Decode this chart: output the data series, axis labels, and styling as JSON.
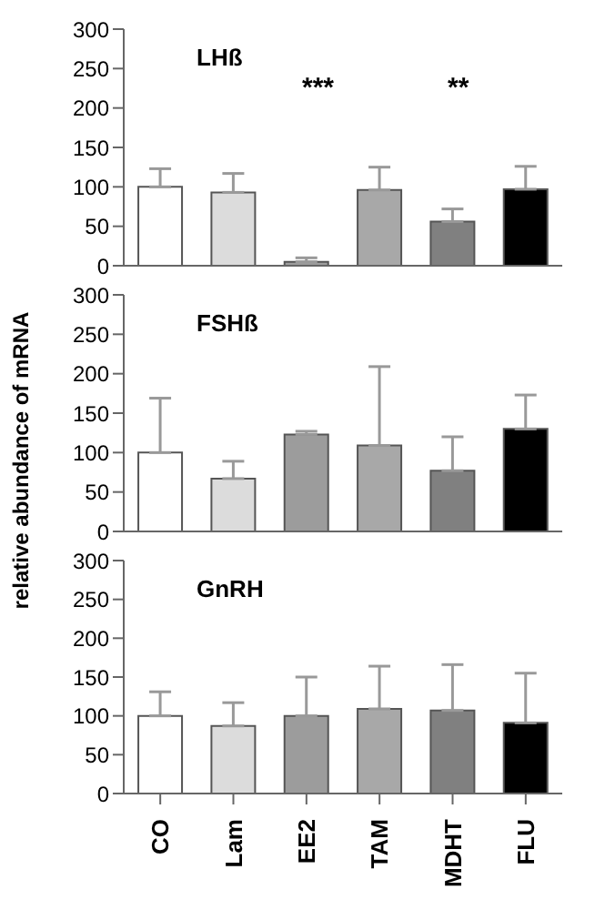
{
  "chart_data": [
    {
      "type": "bar",
      "title": "LHß",
      "categories": [
        null,
        null,
        null,
        null,
        null,
        null
      ],
      "values": [
        100,
        93,
        5,
        96,
        56,
        97
      ],
      "colors": [
        "#ffffff",
        "#dcdcdc",
        "#9c9c9c",
        "#a8a8a8",
        "#808080",
        "#000000"
      ],
      "errors": [
        [
          100,
          123
        ],
        [
          93,
          117
        ],
        [
          5,
          10
        ],
        [
          96,
          125
        ],
        [
          56,
          72
        ],
        [
          97,
          126
        ]
      ],
      "ylim": [
        0,
        300
      ],
      "yticks": [
        0,
        50,
        100,
        150,
        200,
        250,
        300
      ],
      "tick_labels": "y",
      "annotations": [
        "***",
        "**"
      ]
    },
    {
      "type": "bar",
      "title": "FSHß",
      "ylabel": "relative abundance of mRNA",
      "categories": [
        null,
        null,
        null,
        null,
        null,
        null
      ],
      "values": [
        100,
        67,
        123,
        109,
        77,
        130
      ],
      "colors": [
        "#ffffff",
        "#dcdcdc",
        "#9c9c9c",
        "#a8a8a8",
        "#808080",
        "#000000"
      ],
      "errors": [
        [
          100,
          169
        ],
        [
          67,
          89
        ],
        [
          123,
          127
        ],
        [
          109,
          209
        ],
        [
          77,
          120
        ],
        [
          130,
          173
        ]
      ],
      "ylim": [
        0,
        300
      ],
      "yticks": [
        0,
        50,
        100,
        150,
        200,
        250,
        300
      ],
      "tick_labels": "y"
    },
    {
      "type": "bar",
      "title": "GnRH",
      "categories": [
        "CO",
        "Lam",
        "EE2",
        "TAM",
        "MDHT",
        "FLU"
      ],
      "values": [
        100,
        87,
        100,
        109,
        107,
        91
      ],
      "colors": [
        "#ffffff",
        "#dcdcdc",
        "#9c9c9c",
        "#a8a8a8",
        "#808080",
        "#000000"
      ],
      "errors": [
        [
          100,
          131
        ],
        [
          87,
          117
        ],
        [
          100,
          150
        ],
        [
          109,
          164
        ],
        [
          107,
          166
        ],
        [
          91,
          155
        ]
      ],
      "ylim": [
        0,
        300
      ],
      "yticks": [
        0,
        50,
        100,
        150,
        200,
        250,
        300
      ]
    }
  ]
}
